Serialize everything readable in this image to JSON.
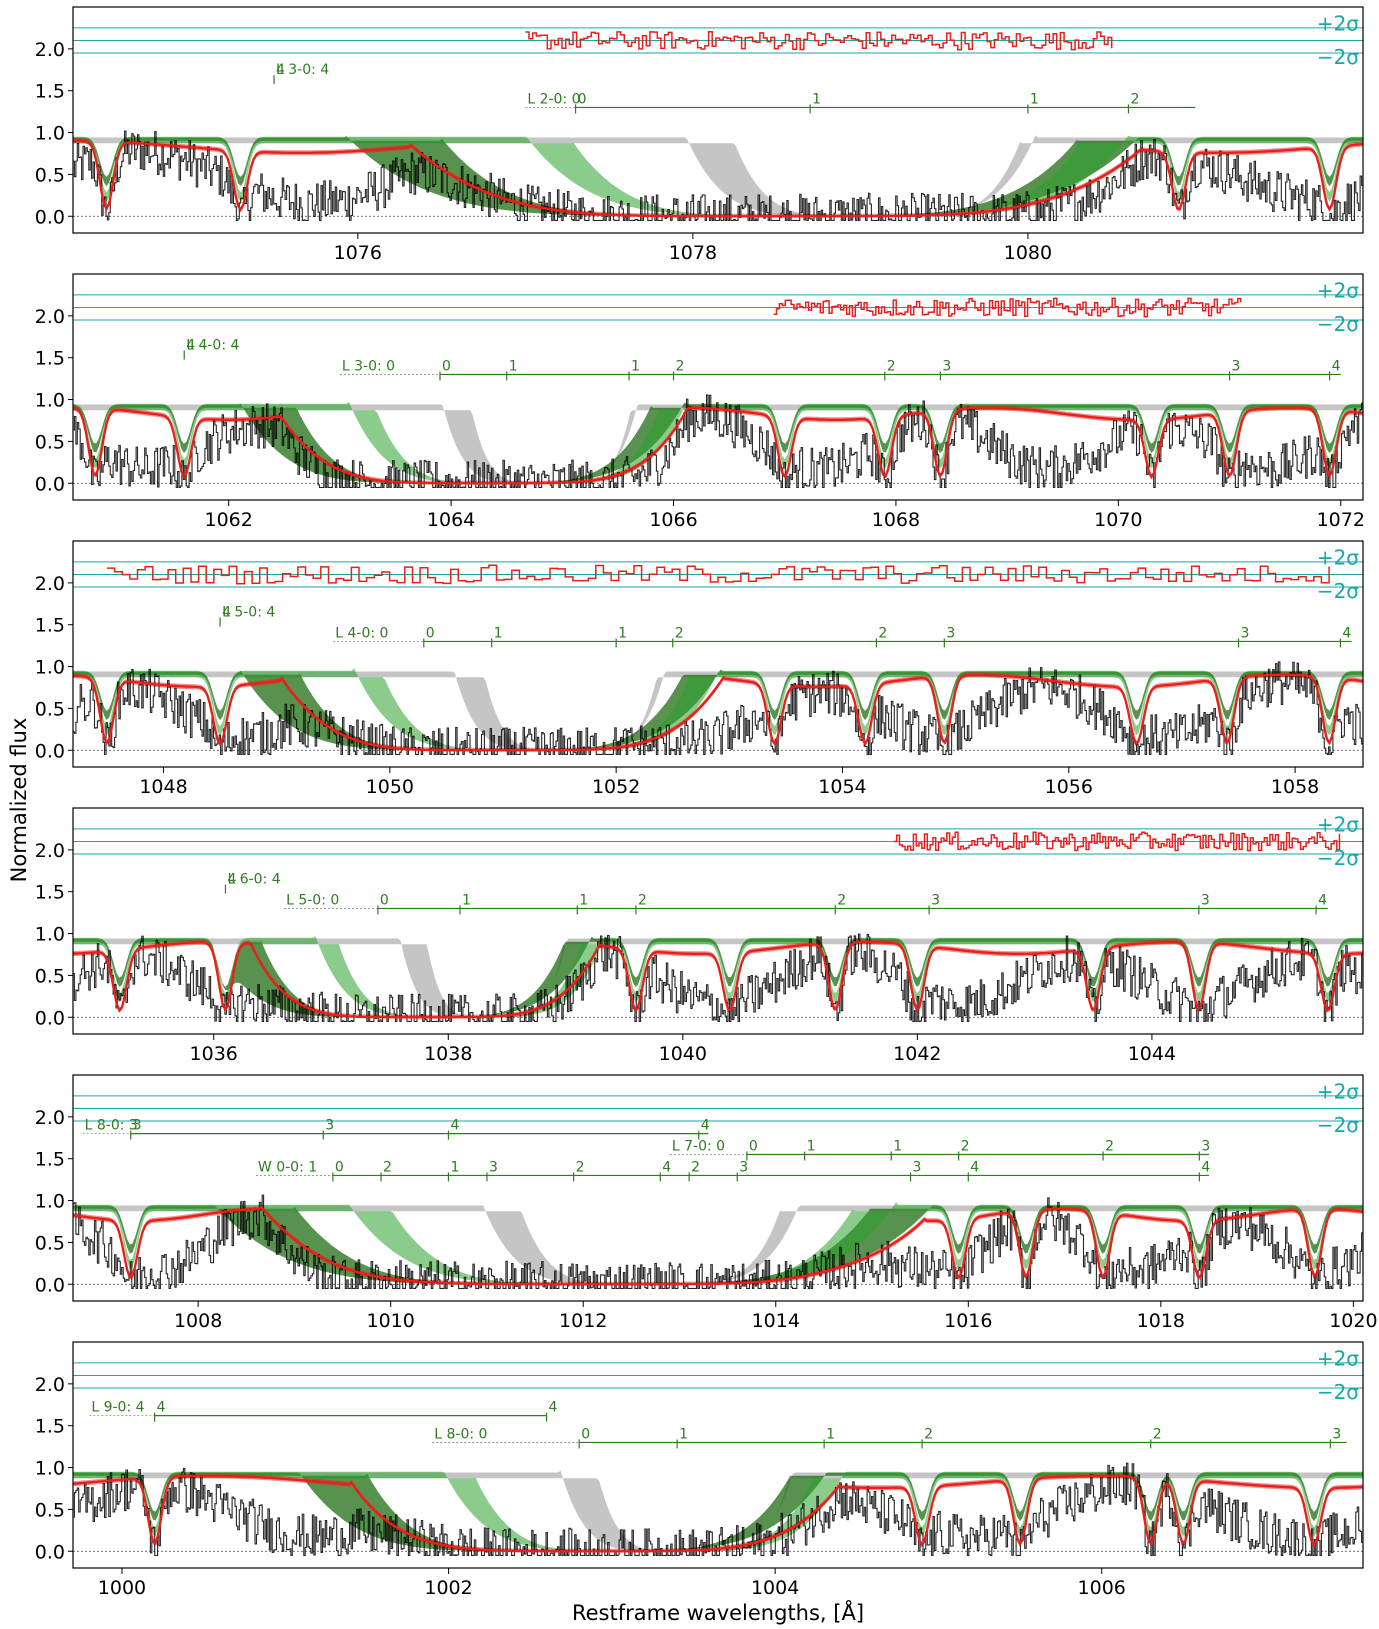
{
  "figure": {
    "ylabel": "Normalized flux",
    "xlabel": "Restframe wavelengths, [Å]"
  },
  "colors": {
    "data": "#000000",
    "model_total": "#e8201c",
    "component_green": "#2ca02c",
    "component_darkgreen": "#1f6f14",
    "component_grey": "#9e9e9e",
    "residual": "#e8201c",
    "sigma_lines": "#1aa6a6",
    "band_marks": "#2e7d1f"
  },
  "sigma_labels": [
    "+2σ",
    "−2σ"
  ],
  "chart_data": [
    {
      "type": "line",
      "title": "",
      "xlim": [
        1074.3,
        1082.0
      ],
      "ylim": [
        -0.2,
        2.5
      ],
      "xticks": [
        1076,
        1078,
        1080
      ],
      "yticks": [
        "0.0",
        "0.5",
        "1.0",
        "1.5",
        "2.0"
      ],
      "trough_center": 1078.6,
      "trough_halfwidth": 1.9,
      "lines": [
        1074.5,
        1075.3,
        1080.9,
        1081.8
      ],
      "residual_range": [
        1077.0,
        1080.5
      ],
      "bands": [
        {
          "label": "L 3-0: 4",
          "x": 1075.5,
          "level": 1.65,
          "marks": [
            {
              "x": 1075.5,
              "t": "4"
            }
          ]
        },
        {
          "label": "L 2-0: 0",
          "x": 1077.0,
          "x_end": 1081.0,
          "level": 1.3,
          "marks": [
            {
              "x": 1077.3,
              "t": "0"
            },
            {
              "x": 1078.7,
              "t": "1"
            },
            {
              "x": 1080.0,
              "t": "1"
            },
            {
              "x": 1080.6,
              "t": "2"
            }
          ]
        }
      ]
    },
    {
      "type": "line",
      "title": "",
      "xlim": [
        1060.6,
        1072.2
      ],
      "ylim": [
        -0.2,
        2.5
      ],
      "xticks": [
        1062,
        1064,
        1066,
        1068,
        1070,
        1072
      ],
      "yticks": [
        "0.0",
        "0.5",
        "1.0",
        "1.5",
        "2.0"
      ],
      "trough_center": 1064.4,
      "trough_halfwidth": 1.6,
      "lines": [
        1060.8,
        1061.6,
        1067.0,
        1067.9,
        1068.4,
        1070.3,
        1071.0,
        1071.9
      ],
      "residual_range": [
        1066.9,
        1071.1
      ],
      "bands": [
        {
          "label": "L 4-0: 4",
          "x": 1061.6,
          "level": 1.55,
          "marks": [
            {
              "x": 1061.6,
              "t": "4"
            }
          ]
        },
        {
          "label": "L 3-0: 0",
          "x": 1063.0,
          "x_end": 1072.0,
          "level": 1.3,
          "marks": [
            {
              "x": 1063.9,
              "t": "0"
            },
            {
              "x": 1064.5,
              "t": "1"
            },
            {
              "x": 1065.6,
              "t": "1"
            },
            {
              "x": 1066.0,
              "t": "2"
            },
            {
              "x": 1067.9,
              "t": "2"
            },
            {
              "x": 1068.4,
              "t": "3"
            },
            {
              "x": 1071.0,
              "t": "3"
            },
            {
              "x": 1071.9,
              "t": "4"
            }
          ]
        }
      ]
    },
    {
      "type": "line",
      "title": "",
      "xlim": [
        1047.2,
        1058.6
      ],
      "ylim": [
        -0.2,
        2.5
      ],
      "xticks": [
        1048,
        1050,
        1052,
        1054,
        1056,
        1058
      ],
      "yticks": [
        "0.0",
        "0.5",
        "1.0",
        "1.5",
        "2.0"
      ],
      "trough_center": 1051.1,
      "trough_halfwidth": 1.7,
      "lines": [
        1047.5,
        1048.5,
        1053.4,
        1054.2,
        1054.9,
        1056.6,
        1057.4,
        1058.3
      ],
      "residual_range": [
        1047.5,
        1058.3
      ],
      "bands": [
        {
          "label": "L 5-0: 4",
          "x": 1048.5,
          "level": 1.55,
          "marks": [
            {
              "x": 1048.5,
              "t": "4"
            }
          ]
        },
        {
          "label": "L 4-0: 0",
          "x": 1049.5,
          "x_end": 1058.5,
          "level": 1.3,
          "marks": [
            {
              "x": 1050.3,
              "t": "0"
            },
            {
              "x": 1050.9,
              "t": "1"
            },
            {
              "x": 1052.0,
              "t": "1"
            },
            {
              "x": 1052.5,
              "t": "2"
            },
            {
              "x": 1054.3,
              "t": "2"
            },
            {
              "x": 1054.9,
              "t": "3"
            },
            {
              "x": 1057.5,
              "t": "3"
            },
            {
              "x": 1058.4,
              "t": "4"
            }
          ]
        }
      ]
    },
    {
      "type": "line",
      "title": "",
      "xlim": [
        1034.8,
        1045.8
      ],
      "ylim": [
        -0.2,
        2.5
      ],
      "xticks": [
        1036,
        1038,
        1040,
        1042,
        1044
      ],
      "yticks": [
        "0.0",
        "0.5",
        "1.0",
        "1.5",
        "2.0"
      ],
      "trough_center": 1037.9,
      "trough_halfwidth": 1.3,
      "lines": [
        1035.2,
        1036.1,
        1039.6,
        1040.4,
        1041.3,
        1042.0,
        1043.5,
        1044.4,
        1045.5
      ],
      "residual_range": [
        1041.8,
        1045.6
      ],
      "bands": [
        {
          "label": "L 6-0: 4",
          "x": 1036.1,
          "level": 1.55,
          "marks": [
            {
              "x": 1036.1,
              "t": "4"
            }
          ]
        },
        {
          "label": "L 5-0: 0",
          "x": 1036.6,
          "x_end": 1045.5,
          "level": 1.3,
          "marks": [
            {
              "x": 1037.4,
              "t": "0"
            },
            {
              "x": 1038.1,
              "t": "1"
            },
            {
              "x": 1039.1,
              "t": "1"
            },
            {
              "x": 1039.6,
              "t": "2"
            },
            {
              "x": 1041.3,
              "t": "2"
            },
            {
              "x": 1042.1,
              "t": "3"
            },
            {
              "x": 1044.4,
              "t": "3"
            },
            {
              "x": 1045.4,
              "t": "4"
            }
          ]
        }
      ]
    },
    {
      "type": "line",
      "title": "",
      "xlim": [
        1006.7,
        1020.1
      ],
      "ylim": [
        -0.2,
        2.5
      ],
      "xticks": [
        1008,
        1010,
        1012,
        1014,
        1016,
        1018,
        1020
      ],
      "yticks": [
        "0.0",
        "0.5",
        "1.0",
        "1.5",
        "2.0"
      ],
      "trough_center": 1012.2,
      "trough_halfwidth": 3.0,
      "lines": [
        1007.3,
        1015.9,
        1016.6,
        1017.4,
        1018.4,
        1019.6
      ],
      "residual_range": null,
      "bands": [
        {
          "label": "L 8-0: 3",
          "x": 1006.8,
          "x_end": 1013.3,
          "level": 1.8,
          "marks": [
            {
              "x": 1007.3,
              "t": "3"
            },
            {
              "x": 1009.3,
              "t": "3"
            },
            {
              "x": 1010.6,
              "t": "4"
            },
            {
              "x": 1013.2,
              "t": "4"
            }
          ]
        },
        {
          "label": "L 7-0: 0",
          "x": 1012.9,
          "x_end": 1018.5,
          "level": 1.55,
          "marks": [
            {
              "x": 1013.7,
              "t": "0"
            },
            {
              "x": 1014.3,
              "t": "1"
            },
            {
              "x": 1015.2,
              "t": "1"
            },
            {
              "x": 1015.9,
              "t": "2"
            },
            {
              "x": 1017.4,
              "t": "2"
            },
            {
              "x": 1018.4,
              "t": "3"
            }
          ]
        },
        {
          "label": "W 0-0: 1",
          "x": 1008.6,
          "x_end": 1018.5,
          "level": 1.3,
          "marks": [
            {
              "x": 1009.4,
              "t": "0"
            },
            {
              "x": 1009.9,
              "t": "2"
            },
            {
              "x": 1010.6,
              "t": "1"
            },
            {
              "x": 1011.0,
              "t": "3"
            },
            {
              "x": 1011.9,
              "t": "2"
            },
            {
              "x": 1012.8,
              "t": "4"
            },
            {
              "x": 1013.1,
              "t": "2"
            },
            {
              "x": 1013.6,
              "t": "3"
            },
            {
              "x": 1015.4,
              "t": "3"
            },
            {
              "x": 1016.0,
              "t": "4"
            },
            {
              "x": 1018.4,
              "t": "4"
            }
          ]
        }
      ]
    },
    {
      "type": "line",
      "title": "",
      "xlim": [
        999.7,
        1007.6
      ],
      "ylim": [
        -0.2,
        2.5
      ],
      "xticks": [
        1000,
        1002,
        1004,
        1006
      ],
      "yticks": [
        "0.0",
        "0.5",
        "1.0",
        "1.5",
        "2.0"
      ],
      "trough_center": 1003.0,
      "trough_halfwidth": 1.3,
      "lines": [
        1000.2,
        1004.9,
        1005.5,
        1006.3,
        1006.5,
        1007.3
      ],
      "residual_range": null,
      "bands": [
        {
          "label": "L 9-0: 4",
          "x": 999.8,
          "x_end": 1002.6,
          "level": 1.62,
          "marks": [
            {
              "x": 1000.2,
              "t": "4"
            },
            {
              "x": 1002.6,
              "t": "4"
            }
          ]
        },
        {
          "label": "L 8-0: 0",
          "x": 1001.9,
          "x_end": 1007.5,
          "level": 1.3,
          "marks": [
            {
              "x": 1002.8,
              "t": "0"
            },
            {
              "x": 1003.4,
              "t": "1"
            },
            {
              "x": 1004.3,
              "t": "1"
            },
            {
              "x": 1004.9,
              "t": "2"
            },
            {
              "x": 1006.3,
              "t": "2"
            },
            {
              "x": 1007.4,
              "t": "3"
            }
          ]
        }
      ]
    }
  ]
}
